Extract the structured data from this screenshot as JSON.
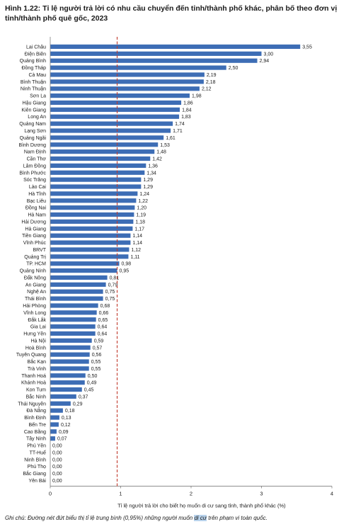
{
  "title": "Hình 1.22: Tỉ lệ người trả lời có nhu cầu chuyển đến tỉnh/thành phố khác, phân bố theo đơn vị tỉnh/thành phố quê gốc, 2023",
  "note": {
    "before": "Ghi chú: Đường nét đứt biểu thị tỉ lệ trung bình (0,95%) những người muốn ",
    "highlight": "di cư",
    "after": " trên phạm vi toàn quốc."
  },
  "colors": {
    "bar": "#3d6db5",
    "mean_line": "#c0392b",
    "axis": "#7f7f7f",
    "text": "#1a1a1a"
  },
  "chart_data": {
    "type": "bar",
    "orientation": "horizontal",
    "xlabel": "Tỉ lệ người trả lời cho biết họ muốn di cư sang tỉnh, thành phố khác (%)",
    "ylabel": "",
    "xlim": [
      0,
      4
    ],
    "xticks": [
      "0",
      "1",
      "2",
      "3",
      "4"
    ],
    "grid": false,
    "mean_line": {
      "value": 0.95,
      "style": "dashed"
    },
    "categories": [
      "Lai Châu",
      "Điện Biên",
      "Quảng Bình",
      "Đồng Tháp",
      "Cà Mau",
      "Bình Thuận",
      "Ninh Thuận",
      "Sơn La",
      "Hậu Giang",
      "Kiên Giang",
      "Long An",
      "Quảng Nam",
      "Lạng Sơn",
      "Quảng Ngãi",
      "Bình Dương",
      "Nam Định",
      "Cần Thơ",
      "Lâm Đồng",
      "Bình Phước",
      "Sóc Trăng",
      "Lào Cai",
      "Hà Tĩnh",
      "Bạc Liêu",
      "Đồng Nai",
      "Hà Nam",
      "Hải Dương",
      "Hà Giang",
      "Tiền Giang",
      "Vĩnh Phúc",
      "BRVT",
      "Quảng Trị",
      "TP. HCM",
      "Quảng Ninh",
      "Đắk Nông",
      "An Giang",
      "Nghệ An",
      "Thái Bình",
      "Hải Phòng",
      "Vĩnh Long",
      "Đắk Lắk",
      "Gia Lai",
      "Hưng Yên",
      "Hà Nội",
      "Hoà Bình",
      "Tuyên Quang",
      "Bắc Kạn",
      "Trà Vinh",
      "Thanh Hoá",
      "Khánh Hoà",
      "Kon Tum",
      "Bắc Ninh",
      "Thái Nguyên",
      "Đà Nẵng",
      "Bình Định",
      "Bến Tre",
      "Cao Bằng",
      "Tây Ninh",
      "Phú Yên",
      "TT-Huế",
      "Ninh Bình",
      "Phú Thọ",
      "Bắc Giang",
      "Yên Bái"
    ],
    "values": [
      3.55,
      3.0,
      2.94,
      2.5,
      2.19,
      2.18,
      2.12,
      1.98,
      1.86,
      1.84,
      1.83,
      1.74,
      1.71,
      1.61,
      1.53,
      1.48,
      1.42,
      1.36,
      1.34,
      1.29,
      1.29,
      1.24,
      1.22,
      1.2,
      1.19,
      1.18,
      1.17,
      1.14,
      1.14,
      1.12,
      1.11,
      0.98,
      0.95,
      0.81,
      0.79,
      0.75,
      0.75,
      0.68,
      0.66,
      0.65,
      0.64,
      0.64,
      0.59,
      0.57,
      0.56,
      0.55,
      0.55,
      0.5,
      0.49,
      0.45,
      0.37,
      0.29,
      0.18,
      0.13,
      0.12,
      0.09,
      0.07,
      0.0,
      0.0,
      0.0,
      0.0,
      0.0,
      0.0
    ],
    "value_labels": [
      "3,55",
      "3,00",
      "2,94",
      "2,50",
      "2,19",
      "2,18",
      "2,12",
      "1,98",
      "1,86",
      "1,84",
      "1,83",
      "1,74",
      "1,71",
      "1,61",
      "1,53",
      "1,48",
      "1,42",
      "1,36",
      "1,34",
      "1,29",
      "1,29",
      "1,24",
      "1,22",
      "1,20",
      "1,19",
      "1,18",
      "1,17",
      "1,14",
      "1,14",
      "1,12",
      "1,11",
      "0,98",
      "0,95",
      "0,81",
      "0,79",
      "0,75",
      "0,75",
      "0,68",
      "0,66",
      "0,65",
      "0,64",
      "0,64",
      "0,59",
      "0,57",
      "0,56",
      "0,55",
      "0,55",
      "0,50",
      "0,49",
      "0,45",
      "0,37",
      "0,29",
      "0,18",
      "0,13",
      "0,12",
      "0,09",
      "0,07",
      "0,00",
      "0,00",
      "0,00",
      "0,00",
      "0,00",
      "0,00"
    ]
  }
}
